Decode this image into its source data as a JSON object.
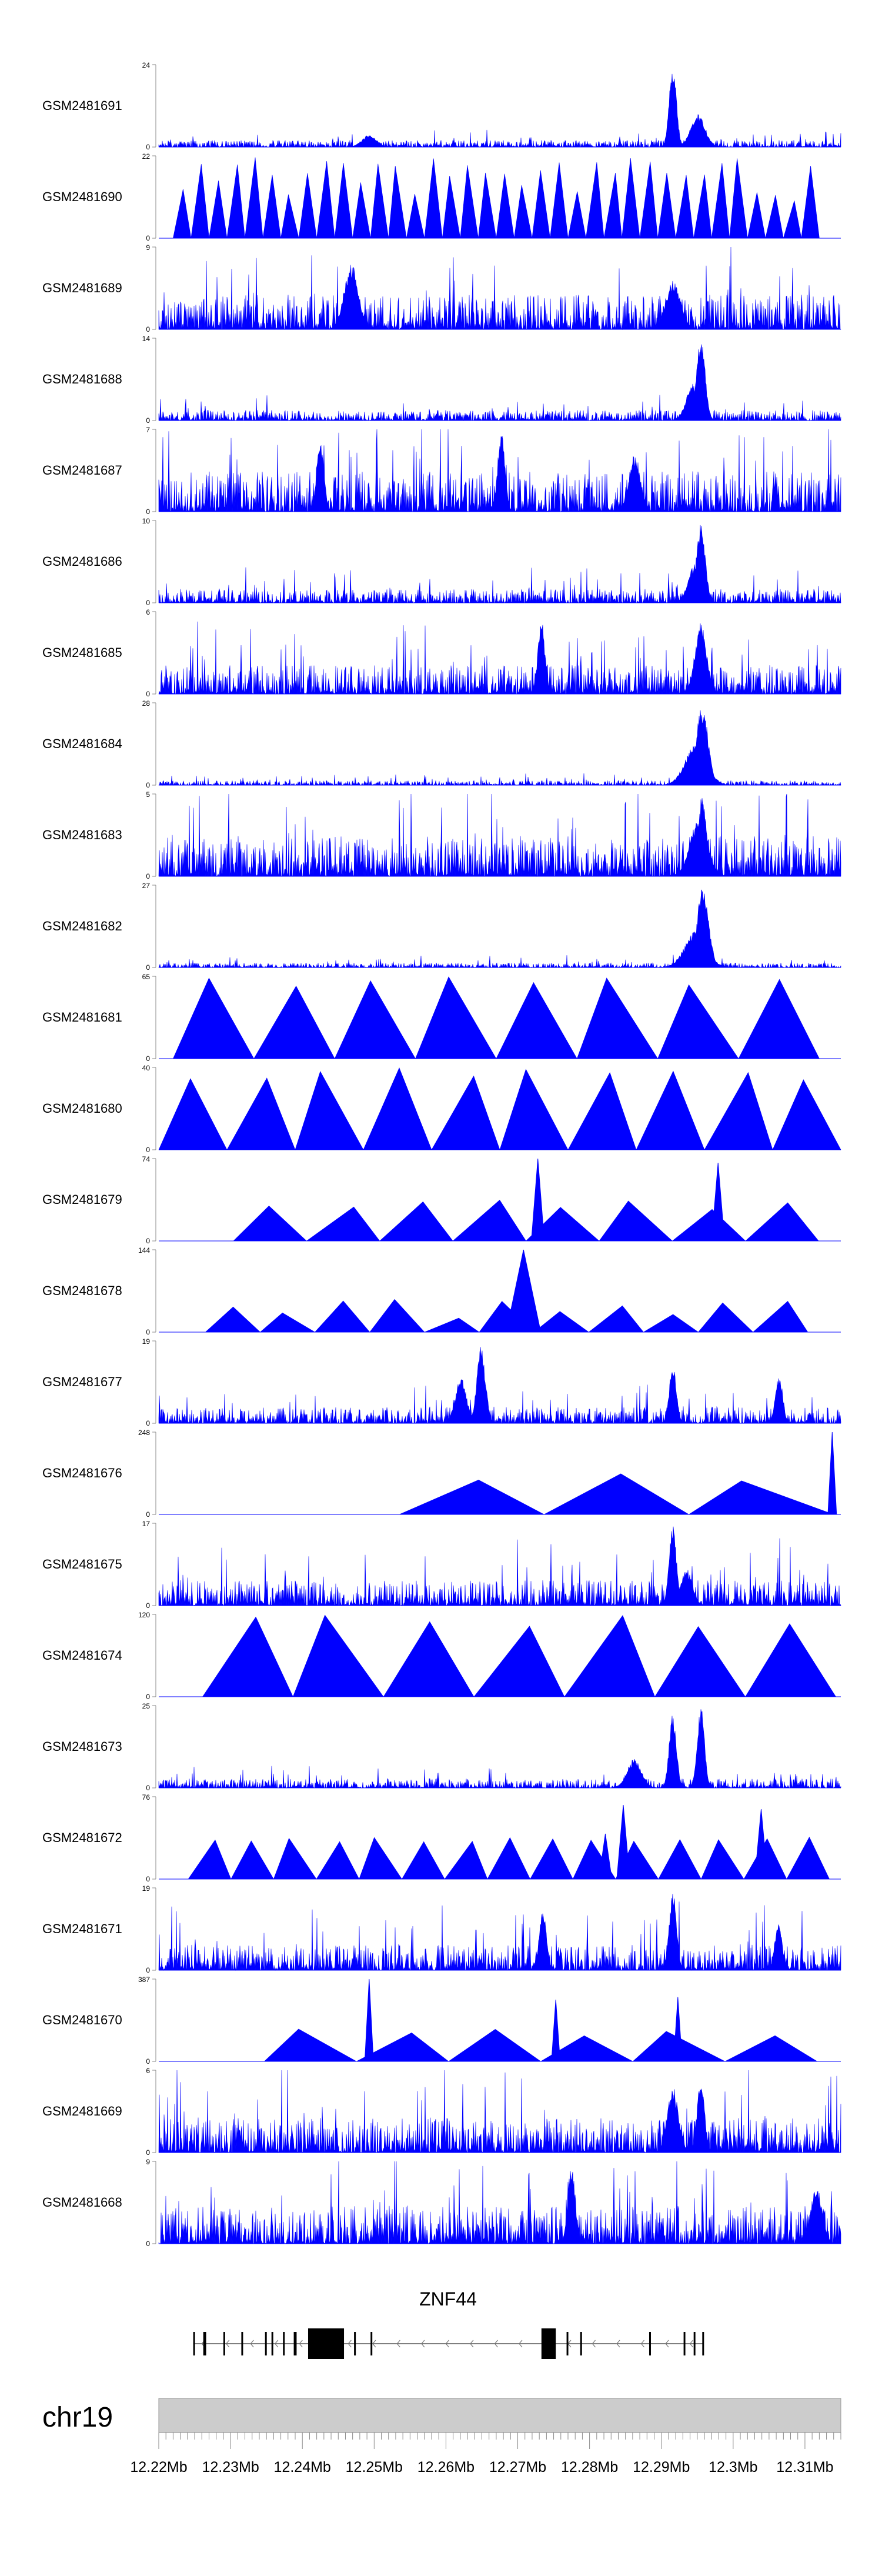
{
  "chart_data": {
    "type": "area",
    "chromosome": "chr19",
    "x_range_mb": [
      12.22,
      12.315
    ],
    "x_ticks": [
      12.22,
      12.23,
      12.24,
      12.25,
      12.26,
      12.27,
      12.28,
      12.29,
      12.3,
      12.31
    ],
    "x_tick_labels": [
      "12.22Mb",
      "12.23Mb",
      "12.24Mb",
      "12.25Mb",
      "12.26Mb",
      "12.27Mb",
      "12.28Mb",
      "12.29Mb",
      "12.3Mb",
      "12.31Mb"
    ],
    "color": "#0000ff",
    "gene": {
      "name": "ZNF44",
      "strand": "-",
      "start_mb": 12.2248,
      "end_mb": 12.2958,
      "exons_mb": [
        [
          12.2248,
          12.2249
        ],
        [
          12.2262,
          12.2266
        ],
        [
          12.229,
          12.2291
        ],
        [
          12.2315,
          12.2316
        ],
        [
          12.2348,
          12.2349
        ],
        [
          12.2357,
          12.2358
        ],
        [
          12.2373,
          12.2374
        ],
        [
          12.2388,
          12.2392
        ],
        [
          12.2408,
          12.2458
        ],
        [
          12.2472,
          12.2474
        ],
        [
          12.2495,
          12.2496
        ],
        [
          12.2733,
          12.2753
        ],
        [
          12.2768,
          12.2769
        ],
        [
          12.2787,
          12.2788
        ],
        [
          12.2883,
          12.2884
        ],
        [
          12.2931,
          12.2933
        ],
        [
          12.2945,
          12.2946
        ],
        [
          12.2957,
          12.2958
        ]
      ]
    },
    "tracks": [
      {
        "name": "GSM2481691",
        "ymax": 24,
        "style": "noise",
        "base": 0.06,
        "peaks": [
          [
            12.2916,
            1.0,
            0.0005
          ],
          [
            12.2951,
            0.4,
            0.001
          ],
          [
            12.2493,
            0.15,
            0.001
          ]
        ]
      },
      {
        "name": "GSM2481690",
        "ymax": 22,
        "style": "tri",
        "start": 12.222,
        "end": 12.312,
        "n": 36,
        "hmin": 0.45,
        "hmax": 1.0,
        "peaks": []
      },
      {
        "name": "GSM2481689",
        "ymax": 9,
        "style": "noise",
        "base": 0.3,
        "peaks": [
          [
            12.2468,
            0.8,
            0.001
          ],
          [
            12.2917,
            0.6,
            0.001
          ]
        ]
      },
      {
        "name": "GSM2481688",
        "ymax": 14,
        "style": "noise",
        "base": 0.09,
        "peaks": [
          [
            12.2955,
            1.0,
            0.0006
          ],
          [
            12.2945,
            0.45,
            0.001
          ]
        ]
      },
      {
        "name": "GSM2481687",
        "ymax": 7,
        "style": "noise",
        "base": 0.35,
        "peaks": [
          [
            12.2677,
            1.0,
            0.0005
          ],
          [
            12.2425,
            0.9,
            0.0005
          ],
          [
            12.2863,
            0.7,
            0.0008
          ]
        ]
      },
      {
        "name": "GSM2481686",
        "ymax": 10,
        "style": "noise",
        "base": 0.12,
        "peaks": [
          [
            12.2955,
            1.0,
            0.0006
          ],
          [
            12.2948,
            0.5,
            0.001
          ]
        ]
      },
      {
        "name": "GSM2481685",
        "ymax": 6,
        "style": "noise",
        "base": 0.25,
        "peaks": [
          [
            12.2733,
            0.9,
            0.0005
          ],
          [
            12.2955,
            0.9,
            0.0008
          ]
        ]
      },
      {
        "name": "GSM2481684",
        "ymax": 28,
        "style": "noise",
        "base": 0.04,
        "peaks": [
          [
            12.2957,
            1.0,
            0.0008
          ],
          [
            12.2948,
            0.5,
            0.0015
          ]
        ]
      },
      {
        "name": "GSM2481683",
        "ymax": 5,
        "style": "noise",
        "base": 0.35,
        "peaks": [
          [
            12.2957,
            1.0,
            0.0006
          ],
          [
            12.2952,
            0.7,
            0.0012
          ]
        ]
      },
      {
        "name": "GSM2481682",
        "ymax": 27,
        "style": "noise",
        "base": 0.04,
        "peaks": [
          [
            12.2958,
            1.0,
            0.0008
          ],
          [
            12.2948,
            0.45,
            0.0015
          ]
        ]
      },
      {
        "name": "GSM2481681",
        "ymax": 65,
        "style": "tri",
        "start": 12.222,
        "end": 12.312,
        "n": 8,
        "hmin": 0.88,
        "hmax": 1.0,
        "peaks": []
      },
      {
        "name": "GSM2481680",
        "ymax": 40,
        "style": "tri",
        "start": 12.22,
        "end": 12.315,
        "n": 10,
        "hmin": 0.85,
        "hmax": 1.0,
        "peaks": []
      },
      {
        "name": "GSM2481679",
        "ymax": 74,
        "style": "tri",
        "start": 12.2304,
        "end": 12.3119,
        "n": 8,
        "hmin": 0.38,
        "hmax": 0.5,
        "peaks": [
          [
            12.2728,
            1.0,
            0.0003
          ],
          [
            12.2979,
            0.95,
            0.0003
          ]
        ]
      },
      {
        "name": "GSM2481678",
        "ymax": 144,
        "style": "tri",
        "start": 12.2265,
        "end": 12.3104,
        "n": 11,
        "hmin": 0.12,
        "hmax": 0.4,
        "peaks": [
          [
            12.2708,
            1.0,
            0.0008
          ],
          [
            12.2304,
            0.28,
            0.0003
          ]
        ]
      },
      {
        "name": "GSM2481677",
        "ymax": 19,
        "style": "noise",
        "base": 0.14,
        "peaks": [
          [
            12.2649,
            0.95,
            0.0006
          ],
          [
            12.2621,
            0.55,
            0.0008
          ],
          [
            12.2916,
            0.7,
            0.0005
          ],
          [
            12.3064,
            0.6,
            0.0005
          ]
        ]
      },
      {
        "name": "GSM2481676",
        "ymax": 248,
        "style": "tri",
        "start": 12.2535,
        "end": 12.314,
        "n": 3,
        "hmin": 0.38,
        "hmax": 0.55,
        "peaks": [
          [
            12.3138,
            1.0,
            0.0002
          ]
        ]
      },
      {
        "name": "GSM2481675",
        "ymax": 17,
        "style": "noise",
        "base": 0.22,
        "peaks": [
          [
            12.2916,
            1.0,
            0.0005
          ],
          [
            12.2935,
            0.45,
            0.0008
          ]
        ]
      },
      {
        "name": "GSM2481674",
        "ymax": 120,
        "style": "tri",
        "start": 12.2261,
        "end": 12.3143,
        "n": 7,
        "hmin": 0.85,
        "hmax": 1.0,
        "peaks": []
      },
      {
        "name": "GSM2481673",
        "ymax": 25,
        "style": "noise",
        "base": 0.08,
        "peaks": [
          [
            12.2916,
            0.9,
            0.0005
          ],
          [
            12.2955,
            1.0,
            0.0005
          ],
          [
            12.2862,
            0.35,
            0.001
          ]
        ]
      },
      {
        "name": "GSM2481672",
        "ymax": 76,
        "style": "tri",
        "start": 12.2241,
        "end": 12.3134,
        "n": 15,
        "hmin": 0.45,
        "hmax": 0.52,
        "peaks": [
          [
            12.2847,
            0.9,
            0.0003
          ],
          [
            12.3039,
            0.85,
            0.0003
          ],
          [
            12.2822,
            0.55,
            0.0003
          ]
        ]
      },
      {
        "name": "GSM2481671",
        "ymax": 19,
        "style": "noise",
        "base": 0.22,
        "peaks": [
          [
            12.2916,
            1.0,
            0.0005
          ],
          [
            12.2735,
            0.75,
            0.0005
          ],
          [
            12.3063,
            0.6,
            0.0005
          ]
        ]
      },
      {
        "name": "GSM2481670",
        "ymax": 387,
        "style": "tri",
        "start": 12.2347,
        "end": 12.3117,
        "n": 6,
        "hmin": 0.3,
        "hmax": 0.4,
        "peaks": [
          [
            12.2493,
            1.0,
            0.0002
          ],
          [
            12.2753,
            0.75,
            0.0002
          ],
          [
            12.2923,
            0.78,
            0.0002
          ]
        ]
      },
      {
        "name": "GSM2481669",
        "ymax": 6,
        "style": "noise",
        "base": 0.3,
        "peaks": [
          [
            12.2955,
            0.95,
            0.0005
          ],
          [
            12.2916,
            0.8,
            0.0008
          ]
        ]
      },
      {
        "name": "GSM2481668",
        "ymax": 9,
        "style": "noise",
        "base": 0.33,
        "peaks": [
          [
            12.2775,
            1.0,
            0.0005
          ],
          [
            12.3116,
            0.7,
            0.0008
          ]
        ]
      }
    ]
  }
}
